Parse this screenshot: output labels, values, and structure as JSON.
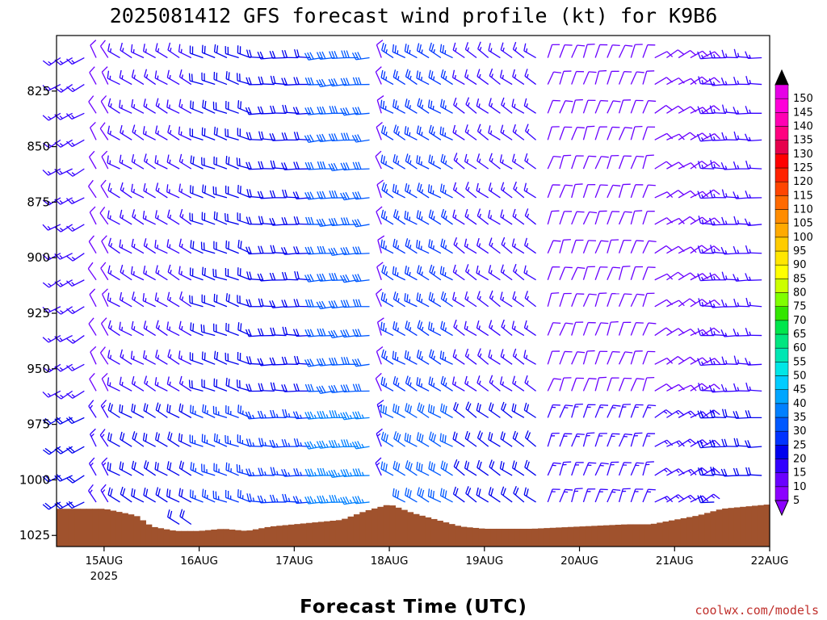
{
  "chart_data": {
    "type": "wind-barb profile",
    "title": "2025081412 GFS forecast wind profile (kt) for K9B6",
    "xlabel": "Forecast Time (UTC)",
    "ylabel": "",
    "watermark": "coolwx.com/models",
    "y_scale": "pressure (hPa), inverted",
    "ylim": [
      1030,
      800
    ],
    "yticks": [
      825,
      850,
      875,
      900,
      925,
      950,
      975,
      1000,
      1025
    ],
    "xticks": [
      {
        "label": "15AUG",
        "sub": "2025",
        "hour": 12
      },
      {
        "label": "16AUG",
        "sub": "",
        "hour": 36
      },
      {
        "label": "17AUG",
        "sub": "",
        "hour": 60
      },
      {
        "label": "18AUG",
        "sub": "",
        "hour": 84
      },
      {
        "label": "19AUG",
        "sub": "",
        "hour": 108
      },
      {
        "label": "20AUG",
        "sub": "",
        "hour": 132
      },
      {
        "label": "21AUG",
        "sub": "",
        "hour": 156
      },
      {
        "label": "22AUG",
        "sub": "",
        "hour": 180
      }
    ],
    "xlim_hours": [
      0,
      180
    ],
    "barb_step_hours": 3,
    "barb_levels": [
      810,
      822,
      835,
      847,
      860,
      873,
      885,
      898,
      910,
      922,
      935,
      948,
      960,
      972,
      985,
      998,
      1010,
      1020
    ],
    "wind_regimes": [
      {
        "from_hour": 0,
        "to_hour": 9,
        "dir_deg": 240,
        "speed_kt": 15
      },
      {
        "from_hour": 9,
        "to_hour": 15,
        "dir_deg": 330,
        "speed_kt": 10
      },
      {
        "from_hour": 15,
        "to_hour": 36,
        "dir_deg": 300,
        "speed_kt": 15
      },
      {
        "from_hour": 36,
        "to_hour": 51,
        "dir_deg": 290,
        "speed_kt": 20
      },
      {
        "from_hour": 51,
        "to_hour": 66,
        "dir_deg": 270,
        "speed_kt": 20
      },
      {
        "from_hour": 66,
        "to_hour": 81,
        "dir_deg": 265,
        "speed_kt": 30
      },
      {
        "from_hour": 81,
        "to_hour": 84,
        "dir_deg": 340,
        "speed_kt": 10
      },
      {
        "from_hour": 84,
        "to_hour": 102,
        "dir_deg": 300,
        "speed_kt": 25
      },
      {
        "from_hour": 102,
        "to_hour": 124,
        "dir_deg": 305,
        "speed_kt": 15
      },
      {
        "from_hour": 124,
        "to_hour": 150,
        "dir_deg": 20,
        "speed_kt": 10
      },
      {
        "from_hour": 150,
        "to_hour": 165,
        "dir_deg": 60,
        "speed_kt": 10
      },
      {
        "from_hour": 165,
        "to_hour": 180,
        "dir_deg": 270,
        "speed_kt": 15
      }
    ],
    "surface_pressure_hpa": [
      [
        0,
        1013
      ],
      [
        12,
        1013
      ],
      [
        20,
        1016
      ],
      [
        24,
        1021
      ],
      [
        30,
        1023
      ],
      [
        36,
        1023
      ],
      [
        42,
        1022
      ],
      [
        48,
        1023
      ],
      [
        54,
        1021
      ],
      [
        60,
        1020
      ],
      [
        66,
        1019
      ],
      [
        72,
        1018
      ],
      [
        78,
        1014
      ],
      [
        84,
        1011
      ],
      [
        90,
        1015
      ],
      [
        96,
        1018
      ],
      [
        102,
        1021
      ],
      [
        108,
        1022
      ],
      [
        120,
        1022
      ],
      [
        132,
        1021
      ],
      [
        144,
        1020
      ],
      [
        150,
        1020
      ],
      [
        156,
        1018
      ],
      [
        162,
        1016
      ],
      [
        168,
        1013
      ],
      [
        174,
        1012
      ],
      [
        180,
        1011
      ]
    ],
    "ground_color": "#a0522d",
    "colorbar": {
      "min_label": "5",
      "max_label": "150",
      "labels": [
        "5",
        "10",
        "15",
        "20",
        "25",
        "30",
        "35",
        "40",
        "45",
        "50",
        "55",
        "60",
        "65",
        "70",
        "75",
        "80",
        "85",
        "90",
        "95",
        "100",
        "105",
        "110",
        "115",
        "120",
        "125",
        "130",
        "135",
        "140",
        "145",
        "150"
      ],
      "colors": [
        "#8c00ff",
        "#6a00ff",
        "#3300ff",
        "#0000ee",
        "#0033ff",
        "#0059ff",
        "#0080ff",
        "#00a6ff",
        "#00ccff",
        "#00e6e6",
        "#00e6b3",
        "#00e680",
        "#00e64d",
        "#33e600",
        "#80ff00",
        "#ccff00",
        "#ffff00",
        "#ffe600",
        "#ffcc00",
        "#ffaa00",
        "#ff8c00",
        "#ff6a00",
        "#ff4500",
        "#ff2200",
        "#ff0000",
        "#e6004c",
        "#ff0080",
        "#ff00b3",
        "#ff00d9",
        "#e600e6"
      ]
    }
  }
}
